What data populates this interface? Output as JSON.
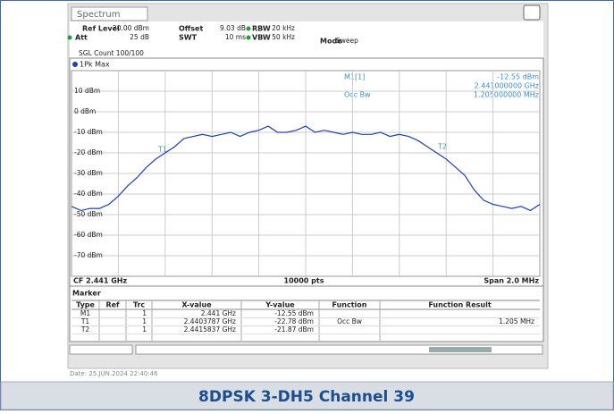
{
  "tab": "Spectrum",
  "settings": [
    {
      "label": "Ref Level",
      "value": "20.00 dBm"
    },
    {
      "label": "Offset",
      "value": "9.03 dB"
    },
    {
      "label": "RBW",
      "value": "20 kHz"
    },
    {
      "label": "Att",
      "value": "25 dB"
    },
    {
      "label": "SWT",
      "value": "10 ms"
    },
    {
      "label": "VBW",
      "value": "50 kHz"
    },
    {
      "label": "Mode",
      "value": "Sweep"
    }
  ],
  "sweep_count": "SGL Count 100/100",
  "chart_data": {
    "type": "line",
    "x": [
      2.44,
      2.44004,
      2.44008,
      2.44012,
      2.44016,
      2.4402,
      2.44024,
      2.44028,
      2.44032,
      2.44036,
      2.4404,
      2.44044,
      2.44048,
      2.44052,
      2.44056,
      2.4406,
      2.44064,
      2.44068,
      2.44072,
      2.44076,
      2.4408,
      2.44084,
      2.44088,
      2.44092,
      2.44096,
      2.441,
      2.44104,
      2.44108,
      2.44112,
      2.44116,
      2.4412,
      2.44124,
      2.44128,
      2.44132,
      2.44136,
      2.4414,
      2.44144,
      2.44148,
      2.44152,
      2.44156,
      2.4416,
      2.44164,
      2.44168,
      2.44172,
      2.44176,
      2.4418,
      2.44184,
      2.44188,
      2.44192,
      2.44196,
      2.442
    ],
    "series": [
      {
        "name": "1Pk Max",
        "color": "#1c3fc4",
        "values": [
          -46,
          -48,
          -47,
          -47,
          -45,
          -41,
          -36,
          -32,
          -27,
          -23,
          -20,
          -17,
          -13,
          -12,
          -11,
          -12,
          -11,
          -10,
          -12,
          -10,
          -9,
          -7,
          -10,
          -10,
          -9,
          -7,
          -10,
          -9,
          -10,
          -11,
          -10,
          -11,
          -11,
          -10,
          -12,
          -11,
          -12,
          -14,
          -17,
          -20,
          -23,
          -27,
          -31,
          -38,
          -43,
          -45,
          -46,
          -47,
          -46,
          -48,
          -45
        ]
      }
    ],
    "xlim": [
      2.44,
      2.442
    ],
    "ylim": [
      -80,
      20
    ],
    "yticks": [
      {
        "value": 10,
        "label": "10 dBm"
      },
      {
        "value": 0,
        "label": "0 dBm"
      },
      {
        "value": -10,
        "label": "-10 dBm"
      },
      {
        "value": -20,
        "label": "-20 dBm"
      },
      {
        "value": -30,
        "label": "-30 dBm"
      },
      {
        "value": -40,
        "label": "-40 dBm"
      },
      {
        "value": -50,
        "label": "-50 dBm"
      },
      {
        "value": -60,
        "label": "-60 dBm"
      },
      {
        "value": -70,
        "label": "-70 dBm"
      }
    ],
    "grid": true
  },
  "marker_readout": {
    "label": "M1[1]",
    "level": "-12.55 dBm",
    "frequency": "2.441000000 GHz",
    "function": "Occ Bw",
    "function_value": "1.205000000 MHz"
  },
  "trace_markers": [
    "T1",
    "T2"
  ],
  "footer": {
    "center": "CF 2.441 GHz",
    "points": "10000 pts",
    "span": "Span 2.0 MHz"
  },
  "marker_table": {
    "title": "Marker",
    "columns": [
      "Type",
      "Ref",
      "Trc",
      "X-value",
      "Y-value",
      "Function",
      "Function Result"
    ],
    "rows": [
      [
        "M1",
        null,
        "1",
        "2.441 GHz",
        "-12.55 dBm",
        null,
        null
      ],
      [
        "T1",
        null,
        "1",
        "2.4403787 GHz",
        "-22.78 dBm",
        "Occ Bw",
        "1.205 MHz"
      ],
      [
        "T2",
        null,
        "1",
        "2.4415837 GHz",
        "-21.87 dBm",
        null,
        null
      ]
    ]
  },
  "date": "Date: 25.JUN.2024  22:40:46",
  "caption": "8DPSK  3-DH5  Channel 39"
}
